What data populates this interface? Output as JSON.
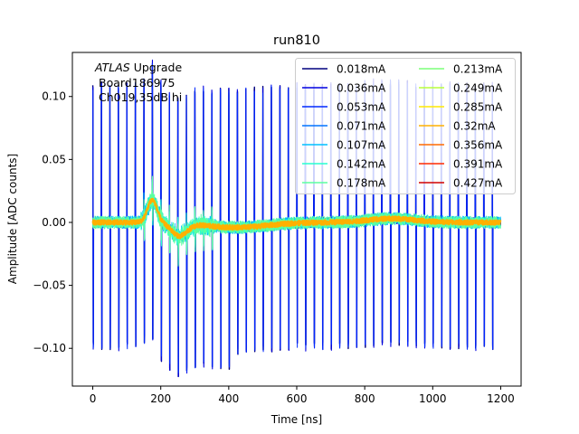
{
  "chart_data": {
    "type": "line",
    "title": "run810",
    "xlabel": "Time [ns]",
    "ylabel": "Amplitude [ADC counts]",
    "xlim": [
      -60,
      1260
    ],
    "ylim": [
      -0.13,
      0.135
    ],
    "xticks": [
      0,
      200,
      400,
      600,
      800,
      1000,
      1200
    ],
    "xtick_labels": [
      "0",
      "200",
      "400",
      "600",
      "800",
      "1000",
      "1200"
    ],
    "yticks": [
      -0.1,
      -0.05,
      0.0,
      0.05,
      0.1
    ],
    "ytick_labels": [
      "−0.10",
      "−0.05",
      "0.00",
      "0.05",
      "0.10"
    ],
    "grid": false,
    "legend_position": "top-right",
    "legend_columns": 2,
    "annotation": {
      "line1_italic": "ATLAS",
      "line1_rest": " Upgrade",
      "line2": "Board186975",
      "line3": "Ch019,35dB hi"
    },
    "pulse_period_ns": 25,
    "pulse_start_ns": 0,
    "pulse_end_ns": 1200,
    "pulse_amplitude_pos": 0.108,
    "pulse_amplitude_neg": -0.098,
    "series": [
      {
        "name": "0.018mA",
        "color": "#00007f",
        "visible": true
      },
      {
        "name": "0.036mA",
        "color": "#0000e0",
        "visible": true
      },
      {
        "name": "0.053mA",
        "color": "#0028ff",
        "visible": true
      },
      {
        "name": "0.071mA",
        "color": "#0074ff",
        "visible": false
      },
      {
        "name": "0.107mA",
        "color": "#00c0ff",
        "visible": true
      },
      {
        "name": "0.142mA",
        "color": "#26ffd0",
        "visible": true
      },
      {
        "name": "0.178mA",
        "color": "#5cffa0",
        "visible": true
      },
      {
        "name": "0.213mA",
        "color": "#7cff79",
        "visible": false
      },
      {
        "name": "0.249mA",
        "color": "#b8ff3c",
        "visible": false
      },
      {
        "name": "0.285mA",
        "color": "#ffea00",
        "visible": false
      },
      {
        "name": "0.32mA",
        "color": "#ffb000",
        "visible": true
      },
      {
        "name": "0.356mA",
        "color": "#ff6a00",
        "visible": false
      },
      {
        "name": "0.391mA",
        "color": "#ff2a00",
        "visible": false
      },
      {
        "name": "0.427mA",
        "color": "#d00000",
        "visible": false
      }
    ]
  }
}
